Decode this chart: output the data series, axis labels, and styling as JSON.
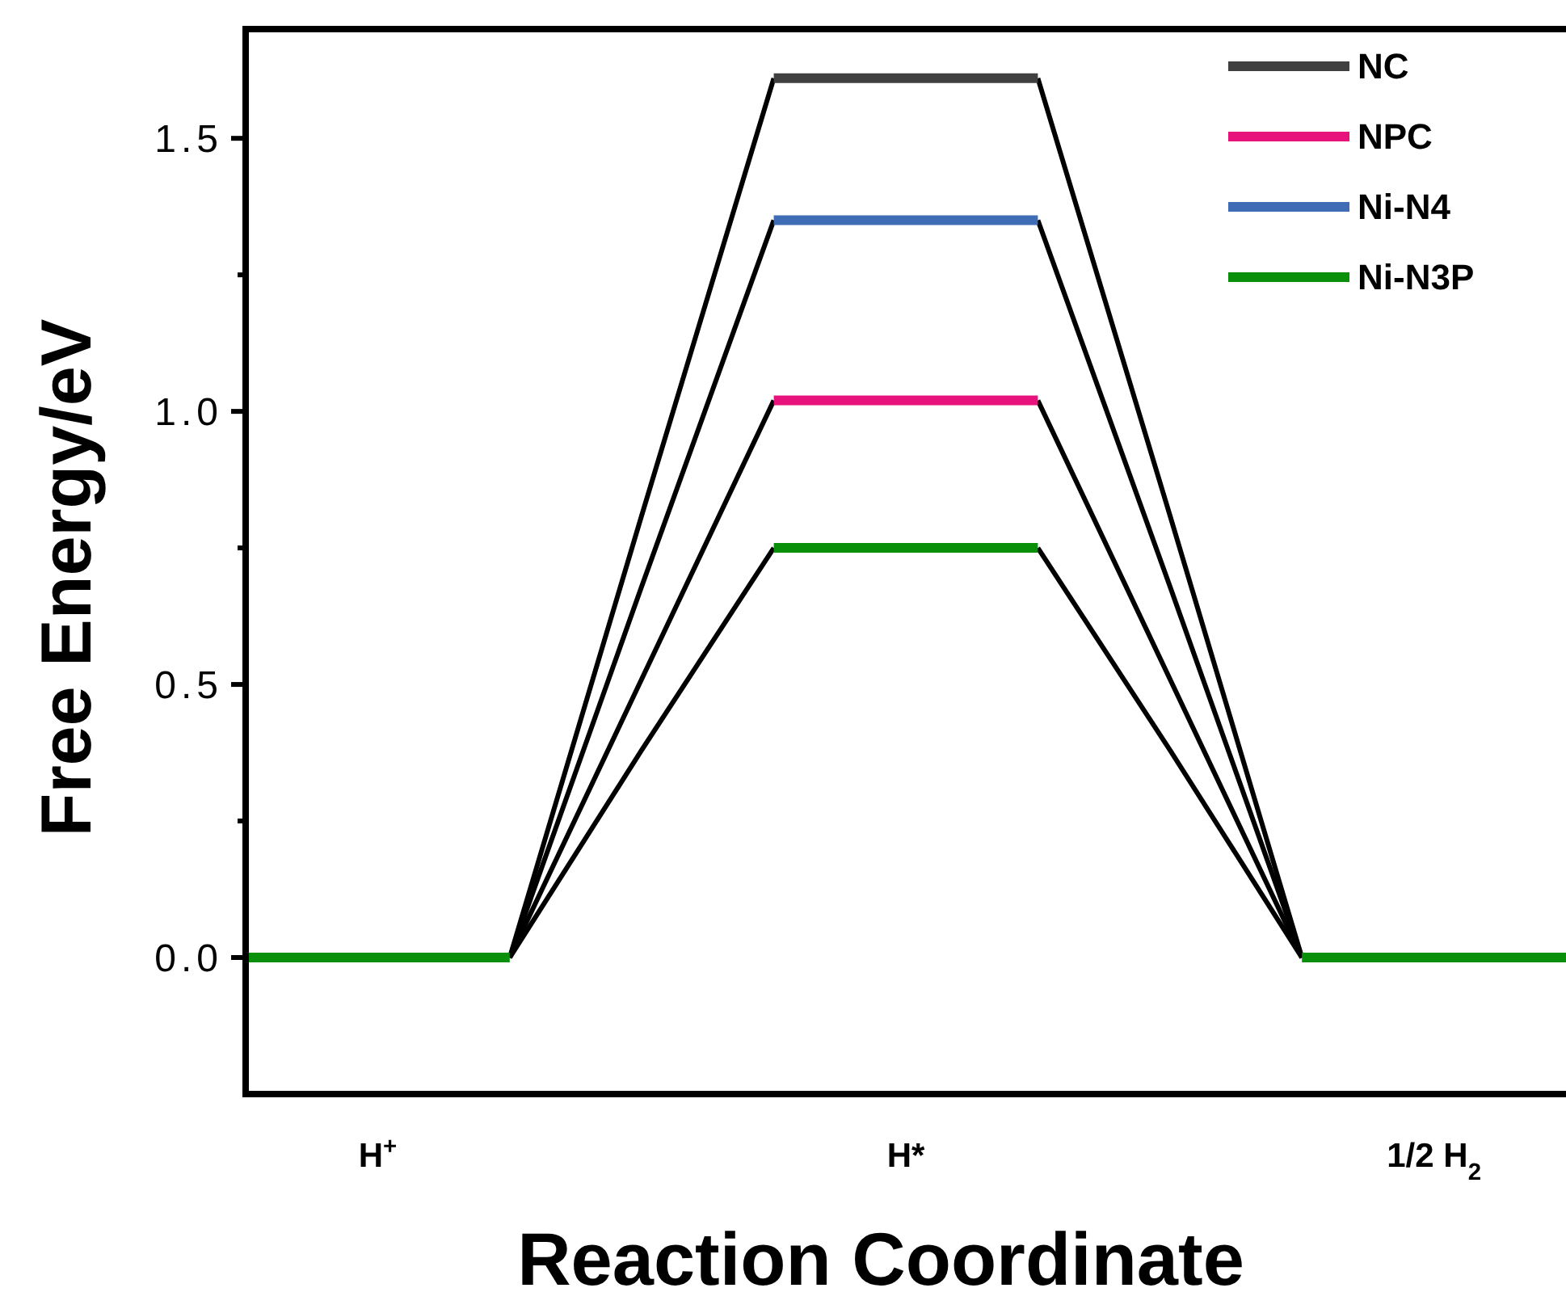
{
  "chart_data": {
    "type": "line",
    "xlabel": "Reaction Coordinate",
    "ylabel": "Free Energy/eV",
    "categories": [
      null,
      "H$^{+}$",
      null,
      null,
      null,
      "H*",
      null,
      null,
      null,
      "1/2 H$_{2}$",
      null
    ],
    "series": [
      {
        "color": "#000000",
        "values": [
          null,
          null,
          0,
          0.81,
          1.61,
          null,
          1.61,
          0.81,
          0,
          null,
          null
        ]
      },
      {
        "color": "#000000",
        "values": [
          null,
          null,
          0,
          0.51,
          1.02,
          null,
          1.02,
          0.51,
          0,
          null,
          null
        ]
      },
      {
        "color": "#000000",
        "values": [
          null,
          null,
          0,
          0.68,
          1.35,
          null,
          1.35,
          0.68,
          0,
          null,
          null
        ]
      },
      {
        "color": "#000000",
        "values": [
          null,
          null,
          0,
          0.38,
          0.75,
          null,
          0.75,
          0.38,
          0,
          null,
          null
        ]
      },
      {
        "name": "NC",
        "color": "#404040",
        "values": [
          null,
          null,
          null,
          null,
          1.61,
          1.61,
          1.61,
          null,
          null,
          null,
          null
        ]
      },
      {
        "name": "NPC",
        "color": "#e8127c",
        "values": [
          null,
          null,
          null,
          null,
          1.02,
          1.02,
          1.02,
          null,
          null,
          null,
          null
        ]
      },
      {
        "name": "Ni-N4",
        "color": "#3f6db5",
        "values": [
          null,
          null,
          null,
          null,
          1.35,
          1.35,
          1.35,
          null,
          null,
          null,
          null
        ]
      },
      {
        "name": "Ni-N3P",
        "color": "#0a8f0a",
        "values": [
          0,
          0,
          0,
          null,
          0.75,
          0.75,
          0.75,
          null,
          0,
          0,
          0
        ]
      }
    ],
    "ylim": [
      -0.25,
      1.7
    ],
    "yticks": [
      {
        "value": 0,
        "label": "0.0"
      },
      {
        "value": 0.25,
        "label": null
      },
      0.5,
      {
        "value": 0.75,
        "label": null
      },
      {
        "value": 1,
        "label": "1.0"
      },
      {
        "value": 1.25,
        "label": null
      },
      1.5
    ],
    "legend": "top right",
    "marker": "none",
    "line_style": "solid",
    "grid": false
  }
}
